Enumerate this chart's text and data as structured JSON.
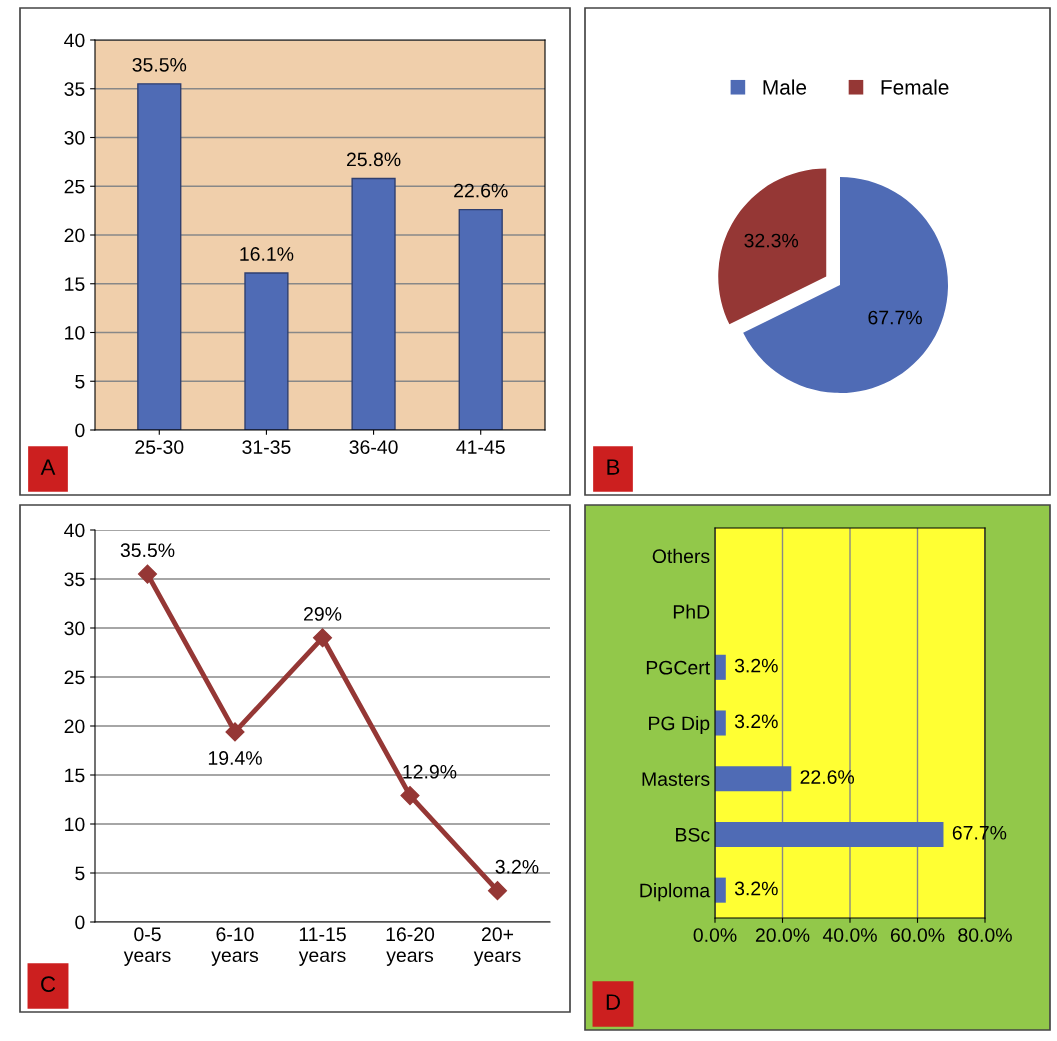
{
  "chart_data": [
    {
      "type": "bar",
      "categories": [
        "25-30",
        "31-35",
        "36-40",
        "41-45"
      ],
      "values": [
        35.5,
        16.1,
        25.8,
        22.6
      ],
      "color": "#4f6bb5",
      "value_labels": [
        "35.5%",
        "16.1%",
        "25.8%",
        "22.6%"
      ],
      "ylim": [
        0,
        40
      ],
      "yticks": [
        0,
        5,
        10,
        15,
        20,
        25,
        30,
        35,
        40
      ],
      "grid": "y",
      "annotations": [
        "A"
      ]
    },
    {
      "type": "pie",
      "categories": [
        "Male",
        "Female"
      ],
      "values": [
        67.7,
        32.3
      ],
      "colors": [
        "#4f6bb5",
        "#953735"
      ],
      "value_labels": [
        "67.7%",
        "32.3%"
      ],
      "legend": "top",
      "annotations": [
        "B"
      ]
    },
    {
      "type": "line",
      "categories": [
        "0-5\nyears",
        "6-10\nyears",
        "11-15\nyears",
        "16-20\nyears",
        "20+\nyears"
      ],
      "values": [
        35.5,
        19.4,
        29,
        12.9,
        3.2
      ],
      "color": "#953735",
      "value_labels": [
        "35.5%",
        "19.4%",
        "29%",
        "12.9%",
        "3.2%"
      ],
      "ylim": [
        0,
        40
      ],
      "yticks": [
        0,
        5,
        10,
        15,
        20,
        25,
        30,
        35,
        40
      ],
      "grid": "y",
      "marker": "diamond",
      "line_style": "solid",
      "annotations": [
        "C"
      ]
    },
    {
      "type": "bar",
      "orientation": "horizontal",
      "categories": [
        "Others",
        "PhD",
        "PGCert",
        "PG Dip",
        "Masters",
        "BSc",
        "Diploma"
      ],
      "values": [
        0,
        0,
        3.2,
        3.2,
        22.6,
        67.7,
        3.2
      ],
      "color": "#4f6bb5",
      "value_labels": [
        null,
        null,
        "3.2%",
        "3.2%",
        "22.6%",
        "67.7%",
        "3.2%"
      ],
      "xlim": [
        0,
        80
      ],
      "xticks": [
        {
          "value": 0,
          "label": "0.0%"
        },
        {
          "value": 20,
          "label": "20.0%"
        },
        {
          "value": 40,
          "label": "40.0%"
        },
        {
          "value": 60,
          "label": "60.0%"
        },
        {
          "value": 80,
          "label": "80.0%"
        }
      ],
      "grid": "x",
      "annotations": [
        "D"
      ]
    }
  ]
}
